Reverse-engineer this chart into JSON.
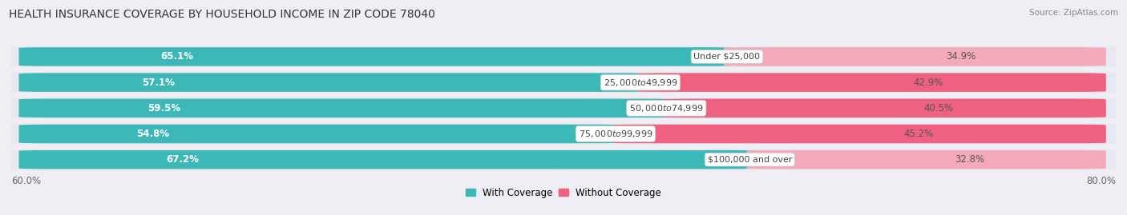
{
  "title": "HEALTH INSURANCE COVERAGE BY HOUSEHOLD INCOME IN ZIP CODE 78040",
  "source": "Source: ZipAtlas.com",
  "categories": [
    "Under $25,000",
    "$25,000 to $49,999",
    "$50,000 to $74,999",
    "$75,000 to $99,999",
    "$100,000 and over"
  ],
  "with_coverage": [
    65.1,
    57.1,
    59.5,
    54.8,
    67.2
  ],
  "without_coverage": [
    34.9,
    42.9,
    40.5,
    45.2,
    32.8
  ],
  "color_with": [
    "#3DB8B8",
    "#3DB8B8",
    "#3DB8B8",
    "#3DB8B8",
    "#3DB8B8"
  ],
  "color_without": [
    "#F4AABB",
    "#F06080",
    "#F06080",
    "#F06080",
    "#F4AABB"
  ],
  "bg_color": "#EEEEF4",
  "bar_bg_color": "#DCDCE8",
  "row_bg_color": "#E8E8F0",
  "x_left_label": "60.0%",
  "x_right_label": "80.0%",
  "label_with": "With Coverage",
  "label_without": "Without Coverage",
  "bar_height": 0.72,
  "title_fontsize": 10,
  "axis_fontsize": 8.5,
  "bar_label_fontsize": 8.5,
  "category_fontsize": 8
}
